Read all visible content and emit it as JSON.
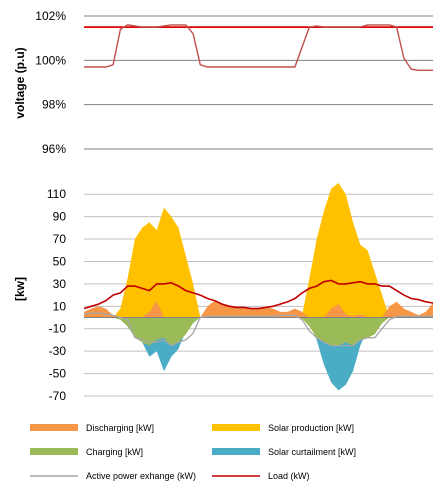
{
  "chart_data": [
    {
      "type": "line",
      "ylabel": "voltage (p.u)",
      "ylim": [
        96,
        102
      ],
      "yticks": [
        "96%",
        "98%",
        "100%",
        "102%"
      ],
      "grid": true,
      "x": [
        0,
        1,
        2,
        3,
        4,
        5,
        6,
        7,
        8,
        9,
        10,
        11,
        12,
        13,
        14,
        15,
        16,
        17,
        18,
        19,
        20,
        21,
        22,
        23,
        24,
        25,
        26,
        27,
        28,
        29,
        30,
        31,
        32,
        33,
        34,
        35,
        36,
        37,
        38,
        39,
        40,
        41,
        42,
        43,
        44,
        45,
        46,
        47,
        48
      ],
      "series": [
        {
          "color": "#e00000",
          "values": [
            101.5,
            101.5,
            101.5,
            101.5,
            101.5,
            101.5,
            101.5,
            101.5,
            101.5,
            101.5,
            101.5,
            101.5,
            101.5,
            101.5,
            101.5,
            101.5,
            101.5,
            101.5,
            101.5,
            101.5,
            101.5,
            101.5,
            101.5,
            101.5,
            101.5,
            101.5,
            101.5,
            101.5,
            101.5,
            101.5,
            101.5,
            101.5,
            101.5,
            101.5,
            101.5,
            101.5,
            101.5,
            101.5,
            101.5,
            101.5,
            101.5,
            101.5,
            101.5,
            101.5,
            101.5,
            101.5,
            101.5,
            101.5,
            101.5
          ]
        },
        {
          "color": "#c0504d",
          "values": [
            99.7,
            99.7,
            99.7,
            99.7,
            99.8,
            101.4,
            101.6,
            101.55,
            101.5,
            101.5,
            101.5,
            101.55,
            101.6,
            101.6,
            101.6,
            101.2,
            99.8,
            99.7,
            99.7,
            99.7,
            99.7,
            99.7,
            99.7,
            99.7,
            99.7,
            99.7,
            99.7,
            99.7,
            99.7,
            99.7,
            100.6,
            101.5,
            101.55,
            101.5,
            101.5,
            101.5,
            101.5,
            101.5,
            101.5,
            101.6,
            101.6,
            101.6,
            101.6,
            101.5,
            100.1,
            99.6,
            99.55,
            99.55,
            99.55
          ]
        }
      ]
    },
    {
      "type": "area",
      "ylabel": "[kw]",
      "ylim": [
        -70,
        120
      ],
      "yticks": [
        -70,
        -50,
        -30,
        -10,
        10,
        30,
        50,
        70,
        90,
        110
      ],
      "grid": true,
      "x": [
        0,
        1,
        2,
        3,
        4,
        5,
        6,
        7,
        8,
        9,
        10,
        11,
        12,
        13,
        14,
        15,
        16,
        17,
        18,
        19,
        20,
        21,
        22,
        23,
        24,
        25,
        26,
        27,
        28,
        29,
        30,
        31,
        32,
        33,
        34,
        35,
        36,
        37,
        38,
        39,
        40,
        41,
        42,
        43,
        44,
        45,
        46,
        47,
        48
      ],
      "series": [
        {
          "name": "Solar production [kW]",
          "color": "#ffc000",
          "values": [
            0,
            0,
            0,
            0,
            0,
            8,
            35,
            70,
            80,
            85,
            78,
            98,
            90,
            80,
            55,
            30,
            0,
            0,
            0,
            0,
            0,
            0,
            0,
            0,
            0,
            0,
            0,
            0,
            0,
            0,
            2,
            35,
            70,
            95,
            115,
            120,
            110,
            85,
            65,
            60,
            40,
            20,
            0,
            0,
            0,
            0,
            0,
            0,
            0
          ]
        },
        {
          "name": "Load (kW)",
          "color": "#c00000",
          "values": [
            8,
            10,
            12,
            15,
            20,
            22,
            28,
            28,
            26,
            24,
            30,
            30,
            31,
            28,
            24,
            22,
            20,
            17,
            15,
            12,
            10,
            9,
            9,
            8,
            8,
            9,
            10,
            12,
            14,
            17,
            22,
            26,
            28,
            32,
            33,
            30,
            30,
            31,
            32,
            30,
            30,
            28,
            28,
            24,
            20,
            17,
            16,
            14,
            13
          ]
        },
        {
          "name": "Discharging [kW]",
          "color": "#f79646",
          "values": [
            5,
            8,
            10,
            8,
            2,
            0,
            0,
            0,
            0,
            5,
            15,
            0,
            0,
            0,
            0,
            0,
            0,
            10,
            15,
            12,
            10,
            9,
            9,
            8,
            8,
            9,
            8,
            5,
            5,
            8,
            5,
            0,
            0,
            0,
            8,
            12,
            3,
            1,
            3,
            0,
            0,
            0,
            10,
            14,
            8,
            5,
            2,
            5,
            13
          ]
        },
        {
          "name": "Charging [kW]",
          "color": "#9bbb59",
          "values": [
            0,
            0,
            0,
            0,
            0,
            -2,
            -8,
            -18,
            -22,
            -25,
            -20,
            -18,
            -25,
            -22,
            -15,
            -5,
            0,
            0,
            0,
            0,
            0,
            0,
            0,
            0,
            0,
            0,
            0,
            0,
            0,
            0,
            -1,
            -8,
            -18,
            -22,
            -25,
            -25,
            -22,
            -25,
            -20,
            -18,
            -15,
            -5,
            0,
            0,
            0,
            0,
            0,
            0,
            0
          ]
        },
        {
          "name": "Solar curtailment [kW]",
          "color": "#4bacc6",
          "values": [
            0,
            0,
            0,
            0,
            0,
            0,
            -2,
            -12,
            -22,
            -35,
            -30,
            -48,
            -35,
            -28,
            -12,
            -2,
            0,
            0,
            0,
            0,
            0,
            0,
            0,
            0,
            0,
            0,
            0,
            0,
            0,
            0,
            0,
            -3,
            -20,
            -42,
            -58,
            -65,
            -60,
            -48,
            -25,
            -10,
            -2,
            0,
            0,
            0,
            0,
            0,
            0,
            0,
            0
          ]
        },
        {
          "name": "Active power exhange (kW)",
          "color": "#a6a6a6",
          "values": [
            3,
            4,
            4,
            3,
            2,
            0,
            -2,
            -18,
            -20,
            -22,
            -22,
            -20,
            -25,
            -22,
            -20,
            -14,
            0,
            1,
            1,
            1,
            1,
            1,
            1,
            1,
            1,
            1,
            1,
            2,
            2,
            2,
            -2,
            -12,
            -18,
            -22,
            -25,
            -25,
            -25,
            -25,
            -20,
            -18,
            -18,
            -10,
            -2,
            1,
            1,
            1,
            1,
            1,
            1
          ]
        }
      ]
    }
  ],
  "legend": {
    "placement": "bottom",
    "items": [
      {
        "label": "Discharging [kW]",
        "kind": "patch",
        "color": "#f79646"
      },
      {
        "label": "Solar production [kW]",
        "kind": "patch",
        "color": "#ffc000"
      },
      {
        "label": "Charging [kW]",
        "kind": "patch",
        "color": "#9bbb59"
      },
      {
        "label": "Solar curtailment [kW]",
        "kind": "patch",
        "color": "#4bacc6"
      },
      {
        "label": "Active power exhange (kW)",
        "kind": "line",
        "color": "#a6a6a6"
      },
      {
        "label": "Load (kW)",
        "kind": "line",
        "color": "#c00000"
      }
    ]
  }
}
